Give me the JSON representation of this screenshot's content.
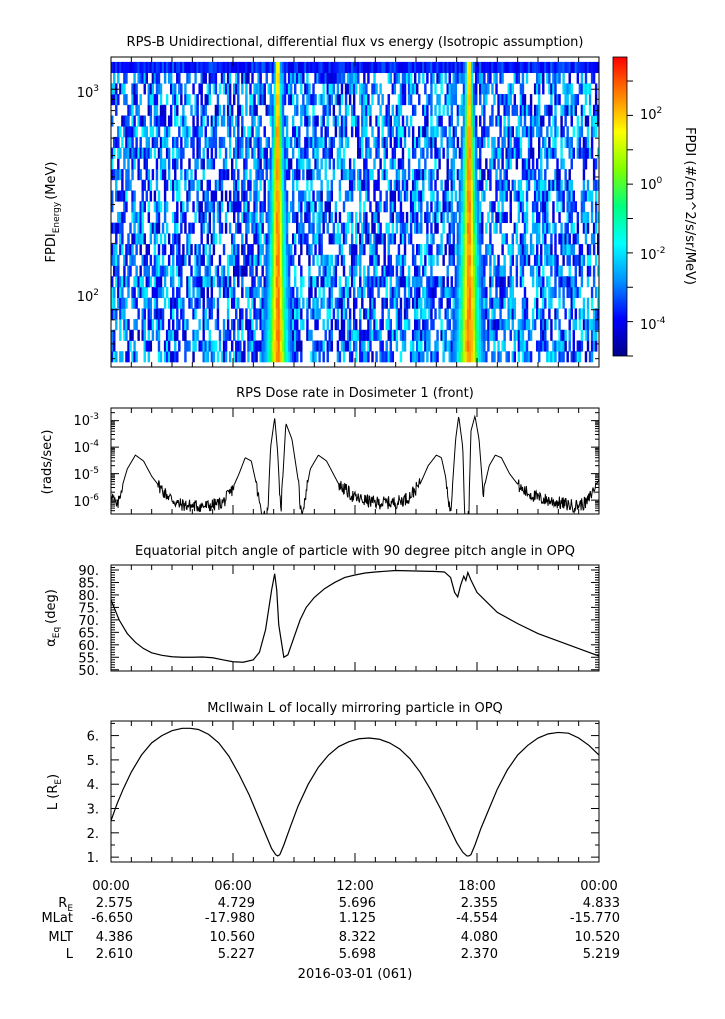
{
  "chart_data": [
    {
      "type": "heatmap",
      "title": "RPS-B  Unidirectional, differential flux vs energy (Isotropic assumption)",
      "ylabel_main": "FPDI",
      "ylabel_sub": "Energy",
      "ylabel_unit": "(MeV)",
      "yscale": "log",
      "ylim": [
        55,
        1400
      ],
      "yticks": [
        {
          "value": 100,
          "base": "10",
          "exp": "2"
        },
        {
          "value": 1000,
          "base": "10",
          "exp": "3"
        }
      ],
      "energy_range": [
        58,
        1330
      ],
      "x_hours": [
        0,
        24
      ],
      "bright_bands": [
        {
          "center": 8.2,
          "width": 0.55
        },
        {
          "center": 17.6,
          "width": 0.6
        }
      ],
      "colorbar": {
        "label": "FPDI (#/cm^2/s/sr/MeV)",
        "scale": "log",
        "range": [
          1e-05,
          5000
        ],
        "ticks": [
          {
            "value": 0.0001,
            "base": "10",
            "exp": "-4"
          },
          {
            "value": 0.01,
            "base": "10",
            "exp": "-2"
          },
          {
            "value": 1,
            "base": "10",
            "exp": "0"
          },
          {
            "value": 100,
            "base": "10",
            "exp": "2"
          }
        ],
        "colors": [
          "#00008b",
          "#0000ff",
          "#0090ff",
          "#00ffff",
          "#00ff80",
          "#80ff00",
          "#ffff00",
          "#ff8000",
          "#ff0000"
        ]
      }
    },
    {
      "type": "line",
      "title": "RPS  Dose rate in Dosimeter 1 (front)",
      "ylabel": "(rads/sec)",
      "yscale": "log",
      "ylim": [
        3e-07,
        0.003
      ],
      "yticks": [
        {
          "value": 1e-06,
          "base": "10",
          "exp": "-6"
        },
        {
          "value": 1e-05,
          "base": "10",
          "exp": "-5"
        },
        {
          "value": 0.0001,
          "base": "10",
          "exp": "-4"
        },
        {
          "value": 0.001,
          "base": "10",
          "exp": "-3"
        }
      ],
      "x": [
        0,
        0.3,
        0.5,
        0.8,
        1.2,
        1.6,
        2.0,
        2.6,
        3.3,
        4.0,
        4.8,
        5.5,
        5.9,
        6.3,
        6.6,
        6.9,
        7.1,
        7.4,
        7.7,
        7.85,
        8.05,
        8.2,
        8.35,
        8.6,
        8.9,
        9.2,
        9.35,
        9.5,
        9.8,
        10.2,
        10.6,
        11.2,
        12.0,
        13.0,
        14.0,
        14.6,
        15.2,
        15.6,
        16.0,
        16.25,
        16.45,
        16.7,
        16.95,
        17.1,
        17.3,
        17.4,
        17.6,
        17.7,
        17.9,
        18.1,
        18.3,
        18.6,
        18.9,
        19.2,
        19.6,
        20.2,
        21.0,
        22.0,
        22.8,
        23.4,
        24.0
      ],
      "values": [
        2e-06,
        5e-07,
        2.5e-06,
        1.5e-05,
        5e-05,
        3e-05,
        8e-06,
        2e-06,
        7e-07,
        6e-07,
        6e-07,
        8e-07,
        2e-06,
        1e-05,
        4e-05,
        3e-05,
        6e-06,
        3e-07,
        3e-07,
        0.0001,
        0.0013,
        6e-05,
        3e-07,
        0.0008,
        0.0002,
        6e-06,
        3e-07,
        8e-07,
        1.5e-05,
        5e-05,
        3e-05,
        4e-06,
        1.2e-06,
        8e-07,
        8e-07,
        1.2e-06,
        4e-06,
        2e-05,
        5e-05,
        4e-05,
        8e-06,
        3e-07,
        0.0002,
        0.0015,
        0.0001,
        3e-07,
        3e-07,
        0.0004,
        0.0015,
        0.0002,
        2e-06,
        2e-05,
        5e-05,
        4e-05,
        1e-05,
        2.5e-06,
        1.2e-06,
        8e-07,
        6e-07,
        8e-07,
        6e-06
      ]
    },
    {
      "type": "line",
      "title": "Equatorial pitch angle of particle with 90 degree pitch angle in OPQ",
      "ylabel_main": "α",
      "ylabel_sub": "Eq",
      "ylabel_unit": "(deg)",
      "ylim": [
        49.5,
        92
      ],
      "yticks": [
        50,
        55,
        60,
        65,
        70,
        75,
        80,
        85,
        90
      ],
      "ytick_labels": [
        "50.",
        "55.",
        "60.",
        "65.",
        "70.",
        "75.",
        "80.",
        "85.",
        "90."
      ],
      "x": [
        0,
        0.4,
        0.8,
        1.2,
        1.6,
        2.0,
        2.5,
        3.0,
        3.5,
        4.0,
        4.5,
        5.0,
        5.5,
        6.0,
        6.5,
        7.0,
        7.3,
        7.6,
        7.9,
        8.05,
        8.15,
        8.25,
        8.5,
        8.7,
        9.0,
        9.3,
        9.6,
        10.0,
        10.5,
        11.0,
        11.5,
        12.0,
        12.5,
        13.0,
        14.0,
        15.0,
        16.0,
        16.4,
        16.7,
        16.9,
        17.05,
        17.2,
        17.35,
        17.45,
        17.55,
        17.7,
        18.0,
        18.5,
        19.0,
        20.0,
        21.0,
        22.0,
        23.0,
        24.0
      ],
      "values": [
        78,
        70,
        64.5,
        61,
        58.5,
        56.8,
        55.8,
        55.2,
        55,
        55,
        55.1,
        54.8,
        54,
        53.2,
        53,
        54,
        57,
        66,
        82,
        88.5,
        82,
        68,
        55,
        56,
        63,
        70,
        75,
        79,
        82.5,
        85,
        87,
        88,
        88.8,
        89.2,
        89.8,
        89.6,
        89.4,
        89.2,
        87,
        81,
        79.2,
        84,
        87.5,
        85.8,
        89,
        86,
        81,
        77,
        73,
        68.5,
        64.5,
        61.5,
        58.5,
        55.5
      ]
    },
    {
      "type": "line",
      "title": "McIlwain L of locally mirroring particle in OPQ",
      "ylabel_main": "L (R",
      "ylabel_sub": "E",
      "ylabel_unit": ")",
      "ylim": [
        0.8,
        6.6
      ],
      "yticks": [
        1,
        2,
        3,
        4,
        5,
        6
      ],
      "ytick_labels": [
        "1.",
        "2.",
        "3.",
        "4.",
        "5.",
        "6."
      ],
      "x": [
        0,
        0.3,
        0.6,
        1.0,
        1.5,
        2.0,
        2.5,
        3.0,
        3.5,
        3.9,
        4.3,
        4.8,
        5.3,
        5.8,
        6.3,
        6.8,
        7.2,
        7.6,
        7.9,
        8.1,
        8.2,
        8.3,
        8.5,
        8.8,
        9.2,
        9.7,
        10.2,
        10.7,
        11.2,
        11.7,
        12.2,
        12.7,
        13.2,
        13.7,
        14.2,
        14.7,
        15.2,
        15.7,
        16.2,
        16.6,
        17.0,
        17.3,
        17.5,
        17.6,
        17.7,
        17.9,
        18.2,
        18.6,
        19.0,
        19.5,
        20.0,
        20.5,
        21.0,
        21.5,
        22.0,
        22.5,
        23.0,
        23.5,
        24.0
      ],
      "values": [
        2.5,
        3.2,
        3.8,
        4.5,
        5.2,
        5.7,
        6.0,
        6.2,
        6.3,
        6.3,
        6.25,
        6.05,
        5.7,
        5.15,
        4.4,
        3.55,
        2.75,
        1.95,
        1.35,
        1.1,
        1.05,
        1.1,
        1.5,
        2.2,
        3.1,
        4.0,
        4.7,
        5.2,
        5.55,
        5.75,
        5.87,
        5.9,
        5.85,
        5.7,
        5.45,
        5.05,
        4.5,
        3.8,
        3.0,
        2.3,
        1.6,
        1.2,
        1.05,
        1.05,
        1.1,
        1.5,
        2.2,
        3.0,
        3.8,
        4.6,
        5.2,
        5.6,
        5.9,
        6.07,
        6.13,
        6.1,
        5.9,
        5.6,
        5.2
      ]
    }
  ],
  "x_axis": {
    "tick_labels": [
      "00:00",
      "06:00",
      "12:00",
      "18:00",
      "00:00"
    ],
    "tick_hours": [
      0,
      6,
      12,
      18,
      24
    ],
    "rows": [
      {
        "label_main": "R",
        "label_sub": "E",
        "values": [
          "2.575",
          "4.729",
          "5.696",
          "2.355",
          "4.833"
        ]
      },
      {
        "label_main": "MLat",
        "label_sub": "",
        "values": [
          "-6.650",
          "-17.980",
          "1.125",
          "-4.554",
          "-15.770"
        ]
      },
      {
        "label_main": "MLT",
        "label_sub": "",
        "values": [
          "4.386",
          "10.560",
          "8.322",
          "4.080",
          "10.520"
        ]
      },
      {
        "label_main": "L",
        "label_sub": "",
        "values": [
          "2.610",
          "5.227",
          "5.698",
          "2.370",
          "5.219"
        ]
      }
    ],
    "date_label": "2016-03-01 (061)"
  }
}
